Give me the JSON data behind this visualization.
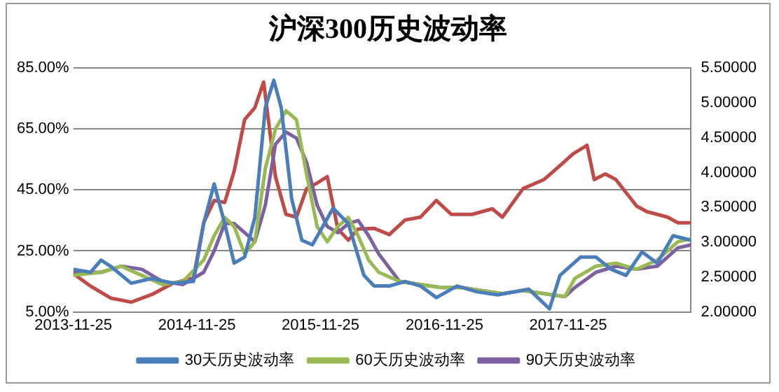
{
  "chart_data": {
    "type": "line",
    "title": "沪深300历史波动率",
    "xlim": [
      "2013-11-25",
      "2018-11-23"
    ],
    "xticks": [
      "2013-11-25",
      "2014-11-25",
      "2015-11-25",
      "2016-11-25",
      "2017-11-25"
    ],
    "ylim": [
      5,
      85
    ],
    "yticks": [
      {
        "value": 5,
        "label": "5.00%"
      },
      {
        "value": 25,
        "label": "25.00%"
      },
      {
        "value": 45,
        "label": "45.00%"
      },
      {
        "value": 65,
        "label": "65.00%"
      },
      {
        "value": 85,
        "label": "85.00%"
      }
    ],
    "y2lim": [
      2,
      5.5
    ],
    "y2ticks": [
      {
        "value": 2,
        "label": "2.00000"
      },
      {
        "value": 2.5,
        "label": "2.50000"
      },
      {
        "value": 3,
        "label": "3.00000"
      },
      {
        "value": 3.5,
        "label": "3.50000"
      },
      {
        "value": 4,
        "label": "4.00000"
      },
      {
        "value": 4.5,
        "label": "4.50000"
      },
      {
        "value": 5,
        "label": "5.00000"
      },
      {
        "value": 5.5,
        "label": "5.50000"
      }
    ],
    "grid": "y",
    "legend": "bottom",
    "marker": "none",
    "line_style": "solid",
    "series": [
      {
        "name": "30天历史波动率",
        "color": "#4a7ebb",
        "x": [
          "2013-11-25",
          "2014-01-15",
          "2014-02-15",
          "2014-03-15",
          "2014-05-15",
          "2014-07-15",
          "2014-09-15",
          "2014-11-15",
          "2014-12-15",
          "2015-01-15",
          "2015-02-15",
          "2015-03-15",
          "2015-04-15",
          "2015-05-15",
          "2015-06-15",
          "2015-07-10",
          "2015-08-01",
          "2015-09-01",
          "2015-10-01",
          "2015-11-01",
          "2016-01-01",
          "2016-02-15",
          "2016-04-01",
          "2016-05-01",
          "2016-06-15",
          "2016-08-01",
          "2016-09-15",
          "2016-11-01",
          "2017-01-01",
          "2017-03-01",
          "2017-05-01",
          "2017-08-01",
          "2017-10-01",
          "2017-11-01",
          "2018-01-01",
          "2018-02-15",
          "2018-04-01",
          "2018-05-15",
          "2018-07-01",
          "2018-08-15",
          "2018-10-01",
          "2018-11-23"
        ],
        "values": [
          19,
          18,
          22,
          20,
          14.4,
          16,
          14.4,
          15,
          34,
          47,
          34,
          21,
          23,
          36,
          72,
          81,
          72,
          42,
          28.5,
          27,
          39,
          34,
          17,
          13.5,
          13.5,
          15,
          13.5,
          9.7,
          13.5,
          11.6,
          10.6,
          12.5,
          6,
          17,
          23,
          23,
          19,
          17,
          24.7,
          21,
          30,
          28.5
        ]
      },
      {
        "name": "60天历史波动率",
        "color": "#98b954",
        "x": [
          "2013-11-25",
          "2014-02-15",
          "2014-04-15",
          "2014-06-15",
          "2014-08-15",
          "2014-10-15",
          "2014-12-15",
          "2015-01-15",
          "2015-02-15",
          "2015-03-15",
          "2015-04-15",
          "2015-05-15",
          "2015-06-15",
          "2015-07-15",
          "2015-08-15",
          "2015-09-15",
          "2015-10-15",
          "2015-11-15",
          "2015-12-15",
          "2016-01-15",
          "2016-02-15",
          "2016-03-15",
          "2016-04-15",
          "2016-05-15",
          "2016-07-15",
          "2016-09-15",
          "2016-11-15",
          "2017-01-15",
          "2017-03-15",
          "2017-05-15",
          "2017-07-15",
          "2017-09-15",
          "2017-11-15",
          "2017-12-15",
          "2018-02-15",
          "2018-04-15",
          "2018-06-15",
          "2018-08-15",
          "2018-10-15",
          "2018-11-23"
        ],
        "values": [
          17,
          18,
          20,
          17,
          14,
          15,
          22,
          30,
          36,
          33,
          24,
          28,
          52,
          65,
          71,
          68,
          50,
          33,
          28,
          33,
          36,
          30,
          22,
          18,
          15,
          14,
          13,
          13,
          12,
          11,
          12,
          11,
          10,
          16,
          20,
          21,
          19,
          22,
          28,
          29
        ]
      },
      {
        "name": "90天历史波动率",
        "color": "#7d60a0",
        "x": [
          "2013-11-25",
          "2014-02-15",
          "2014-04-15",
          "2014-06-15",
          "2014-08-15",
          "2014-10-15",
          "2014-12-15",
          "2015-01-15",
          "2015-02-15",
          "2015-03-15",
          "2015-04-15",
          "2015-05-15",
          "2015-06-15",
          "2015-07-15",
          "2015-08-15",
          "2015-09-15",
          "2015-10-15",
          "2015-11-15",
          "2015-12-15",
          "2016-01-15",
          "2016-02-15",
          "2016-03-15",
          "2016-04-15",
          "2016-05-15",
          "2016-07-15",
          "2016-09-15",
          "2016-11-15",
          "2017-01-15",
          "2017-03-15",
          "2017-05-15",
          "2017-07-15",
          "2017-09-15",
          "2017-11-15",
          "2017-12-15",
          "2018-02-15",
          "2018-04-15",
          "2018-06-15",
          "2018-08-15",
          "2018-10-15",
          "2018-11-23"
        ],
        "values": [
          18,
          18,
          20,
          19,
          15,
          14,
          18,
          25,
          34,
          34,
          31,
          28,
          40,
          60,
          64,
          62,
          54,
          40,
          33,
          31,
          34,
          35,
          30,
          24,
          15,
          14,
          13,
          13,
          12,
          11,
          12,
          11,
          10,
          13,
          18,
          20,
          19,
          20,
          26,
          27
        ]
      },
      {
        "color": "#be4b48",
        "axis": "y2",
        "x": [
          "2013-11-25",
          "2014-01-15",
          "2014-03-15",
          "2014-05-15",
          "2014-07-15",
          "2014-09-15",
          "2014-11-15",
          "2014-12-15",
          "2015-01-15",
          "2015-02-15",
          "2015-03-15",
          "2015-04-15",
          "2015-05-15",
          "2015-06-10",
          "2015-07-15",
          "2015-08-15",
          "2015-09-15",
          "2015-10-15",
          "2015-11-15",
          "2015-12-15",
          "2016-01-15",
          "2016-02-15",
          "2016-03-15",
          "2016-05-01",
          "2016-06-15",
          "2016-08-01",
          "2016-09-15",
          "2016-11-01",
          "2016-12-15",
          "2017-02-15",
          "2017-04-15",
          "2017-05-15",
          "2017-07-15",
          "2017-09-15",
          "2017-11-01",
          "2017-12-10",
          "2018-01-20",
          "2018-02-10",
          "2018-03-15",
          "2018-04-15",
          "2018-06-15",
          "2018-07-15",
          "2018-09-15",
          "2018-10-15",
          "2018-11-23"
        ],
        "values": [
          2.55,
          2.37,
          2.2,
          2.14,
          2.25,
          2.41,
          2.49,
          3.28,
          3.6,
          3.57,
          4.02,
          4.76,
          4.93,
          5.3,
          3.94,
          3.4,
          3.36,
          3.77,
          3.85,
          3.94,
          3.19,
          3.03,
          3.19,
          3.2,
          3.11,
          3.32,
          3.36,
          3.6,
          3.4,
          3.4,
          3.48,
          3.36,
          3.77,
          3.9,
          4.1,
          4.27,
          4.39,
          3.9,
          3.98,
          3.9,
          3.52,
          3.44,
          3.36,
          3.28,
          3.28
        ]
      }
    ]
  }
}
